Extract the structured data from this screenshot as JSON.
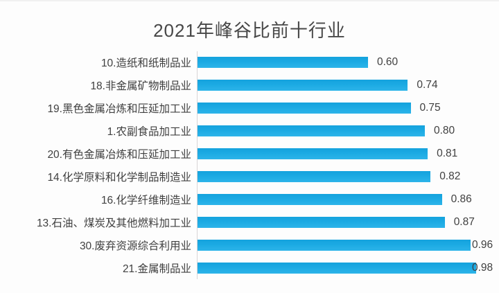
{
  "title": "2021年峰谷比前十行业",
  "colors": {
    "bar": "#1CAAE3",
    "text": "#3F3F3F",
    "title_text": "#474747",
    "axis_line": "#D8D4D6",
    "background": "#FDFDFD"
  },
  "chart_data": {
    "type": "bar",
    "orientation": "horizontal",
    "title": "2021年峰谷比前十行业",
    "categories": [
      "10.造纸和纸制品业",
      "18.非金属矿物制品业",
      "19.黑色金属冶炼和压延加工业",
      "1.农副食品加工业",
      "20.有色金属冶炼和压延加工业",
      "14.化学原料和化学制品制造业",
      "16.化学纤维制造业",
      "13.石油、煤炭及其他燃料加工业",
      "30.废弃资源综合利用业",
      "21.金属制品业"
    ],
    "values": [
      0.6,
      0.74,
      0.75,
      0.8,
      0.81,
      0.82,
      0.86,
      0.87,
      0.96,
      0.98
    ],
    "value_labels": [
      "0.60",
      "0.74",
      "0.75",
      "0.80",
      "0.81",
      "0.82",
      "0.86",
      "0.87",
      "0.96",
      "0.98"
    ],
    "xlim": [
      0,
      1.0
    ],
    "xlabel": "",
    "ylabel": "",
    "grid": false,
    "legend": false,
    "data_labels": "outside-end"
  }
}
